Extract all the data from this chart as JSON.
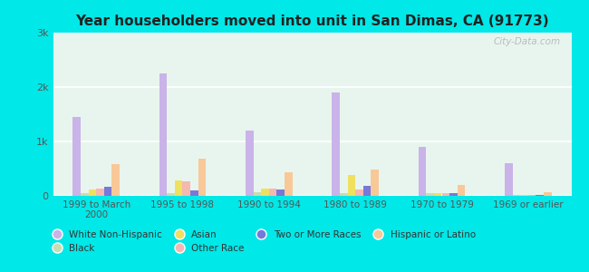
{
  "title": "Year householders moved into unit in San Dimas, CA (91773)",
  "categories": [
    "1999 to March\n2000",
    "1995 to 1998",
    "1990 to 1994",
    "1980 to 1989",
    "1970 to 1979",
    "1969 or earlier"
  ],
  "series_order": [
    "White Non-Hispanic",
    "Black",
    "Asian",
    "Other Race",
    "Two or More Races",
    "Hispanic or Latino"
  ],
  "series": {
    "White Non-Hispanic": [
      1450,
      2250,
      1200,
      1900,
      900,
      600
    ],
    "Black": [
      50,
      55,
      60,
      50,
      55,
      15
    ],
    "Asian": [
      110,
      290,
      140,
      390,
      45,
      15
    ],
    "Other Race": [
      140,
      270,
      140,
      120,
      55,
      15
    ],
    "Two or More Races": [
      170,
      95,
      120,
      190,
      55,
      10
    ],
    "Hispanic or Latino": [
      590,
      680,
      440,
      490,
      195,
      75
    ]
  },
  "colors": {
    "White Non-Hispanic": "#c9b3e8",
    "Black": "#c8ddb0",
    "Asian": "#f0e060",
    "Other Race": "#f4b8b0",
    "Two or More Races": "#7878d8",
    "Hispanic or Latino": "#f8c898"
  },
  "ylim": [
    0,
    3000
  ],
  "yticks": [
    0,
    1000,
    2000,
    3000
  ],
  "ytick_labels": [
    "0",
    "1k",
    "2k",
    "3k"
  ],
  "outer_bg": "#00e8e8",
  "plot_bg": "#e8f5ee",
  "watermark": "City-Data.com",
  "legend_row1": [
    "White Non-Hispanic",
    "Black",
    "Asian",
    "Other Race"
  ],
  "legend_row2": [
    "Two or More Races",
    "Hispanic or Latino"
  ]
}
